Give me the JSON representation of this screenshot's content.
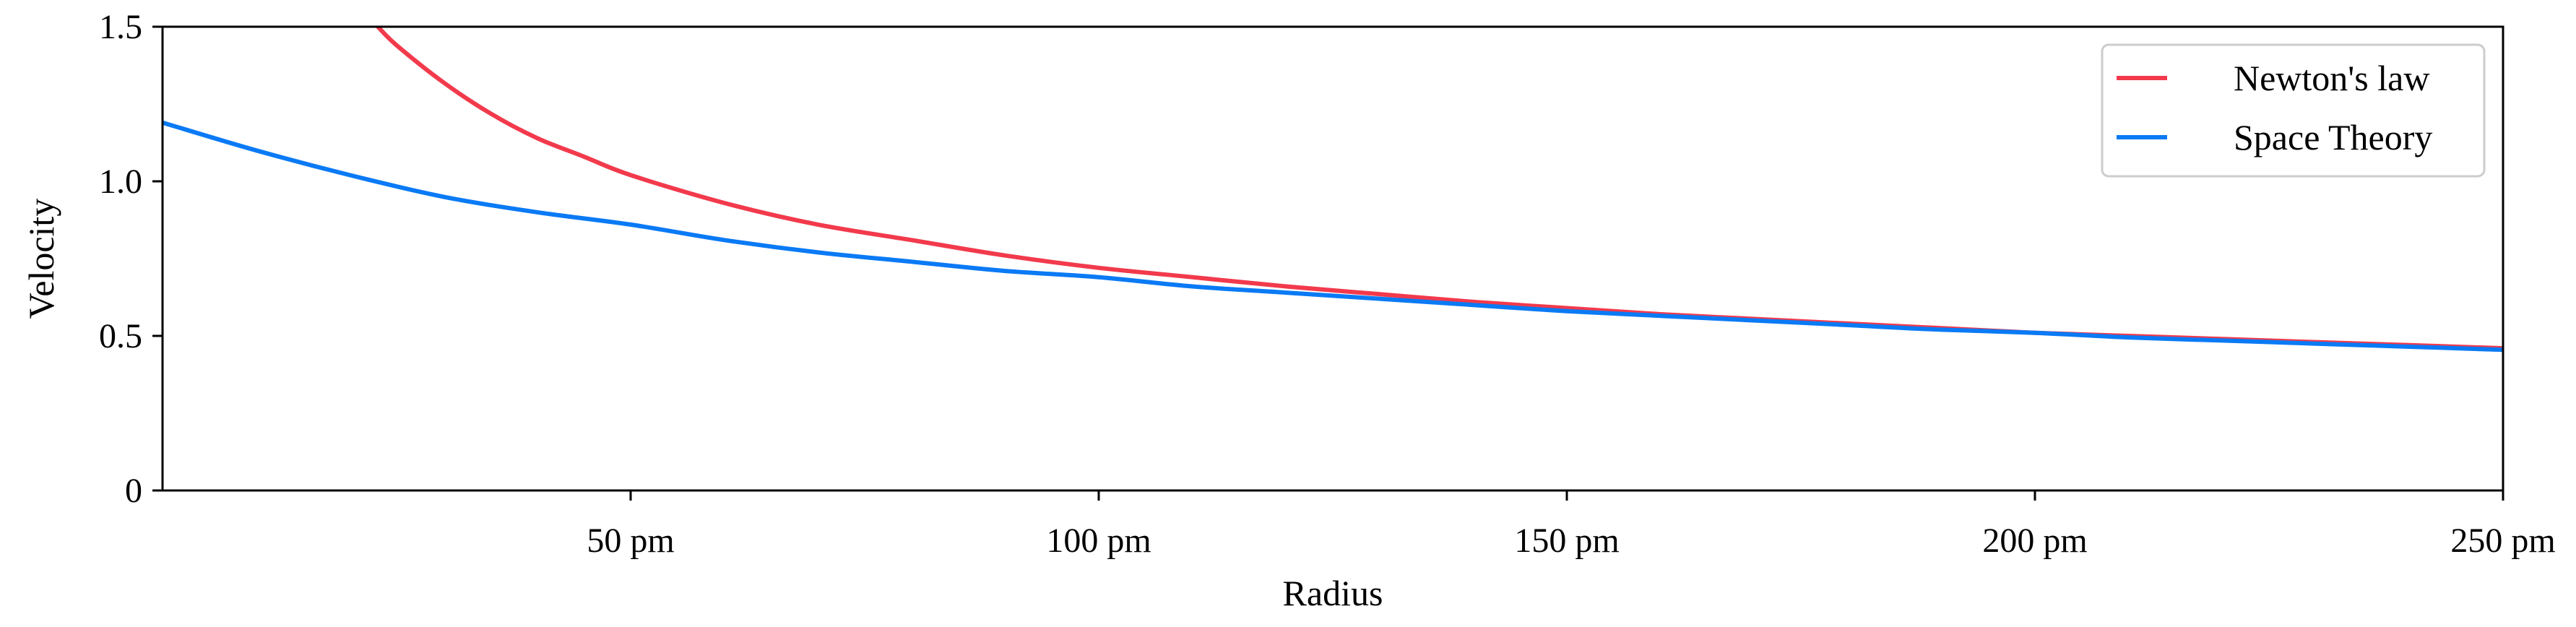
{
  "chart_data": {
    "type": "line",
    "title": "",
    "xlabel": "Radius",
    "ylabel": "Velocity",
    "xlim": [
      0,
      250
    ],
    "ylim": [
      0,
      1.5
    ],
    "x_unit": "pm",
    "xticks": [
      50,
      100,
      150,
      200,
      250
    ],
    "xtick_labels": [
      "50 pm",
      "100 pm",
      "150 pm",
      "200 pm",
      "250 pm"
    ],
    "yticks": [
      0,
      0.5,
      1.0,
      1.5
    ],
    "ytick_labels": [
      "0",
      "0.5",
      "1.0",
      "1.5"
    ],
    "grid": false,
    "legend_position": "top-right",
    "series": [
      {
        "name": "Newton's law",
        "color": "#f23a4c",
        "x": [
          23,
          25,
          30,
          35,
          40,
          45,
          50,
          60,
          70,
          80,
          90,
          100,
          110,
          120,
          130,
          140,
          150,
          160,
          170,
          180,
          190,
          200,
          210,
          220,
          230,
          240,
          250
        ],
        "y": [
          1.5,
          1.44,
          1.32,
          1.22,
          1.14,
          1.08,
          1.02,
          0.93,
          0.86,
          0.81,
          0.76,
          0.72,
          0.69,
          0.66,
          0.635,
          0.61,
          0.59,
          0.57,
          0.555,
          0.54,
          0.525,
          0.51,
          0.5,
          0.49,
          0.48,
          0.47,
          0.46
        ]
      },
      {
        "name": "Space Theory",
        "color": "#0a7af5",
        "x": [
          0,
          10,
          20,
          30,
          40,
          50,
          60,
          70,
          80,
          90,
          100,
          110,
          120,
          130,
          140,
          150,
          160,
          170,
          180,
          190,
          200,
          210,
          220,
          230,
          240,
          250
        ],
        "y": [
          1.19,
          1.1,
          1.02,
          0.95,
          0.9,
          0.86,
          0.81,
          0.77,
          0.74,
          0.71,
          0.69,
          0.66,
          0.64,
          0.62,
          0.6,
          0.58,
          0.565,
          0.55,
          0.535,
          0.52,
          0.51,
          0.495,
          0.485,
          0.475,
          0.465,
          0.455
        ]
      }
    ]
  }
}
